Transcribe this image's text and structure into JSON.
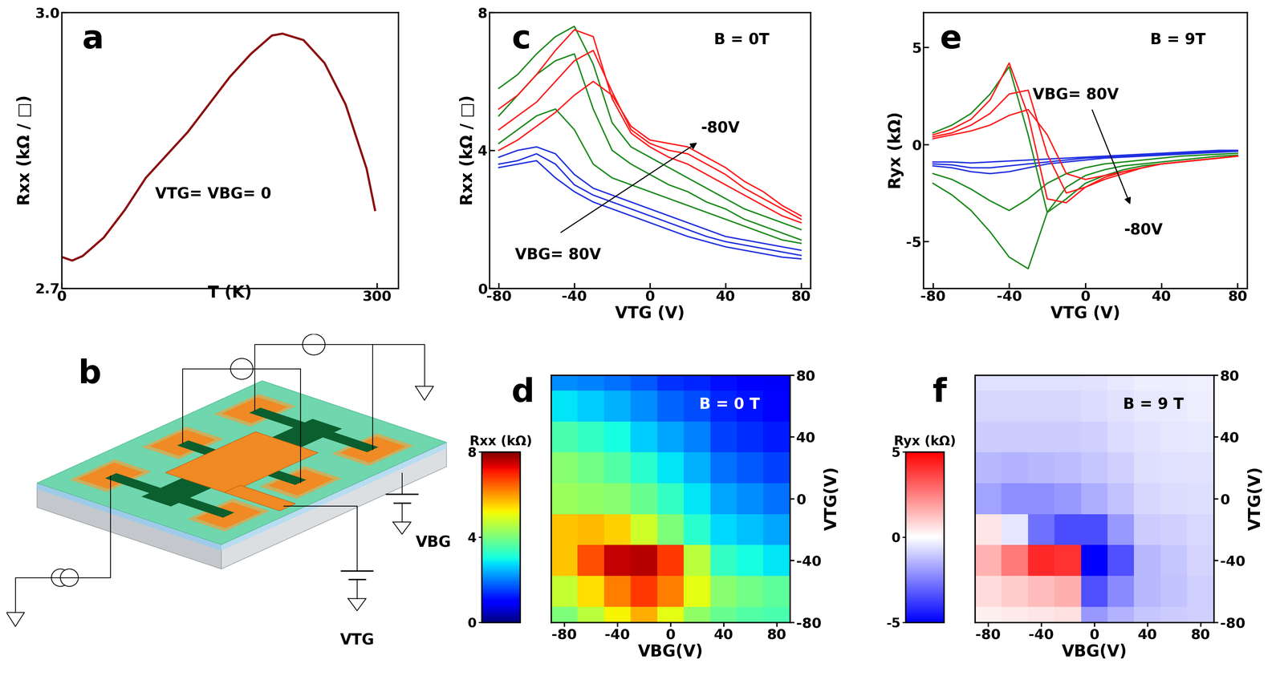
{
  "chart_data": [
    {
      "type": "line",
      "title": "a",
      "x": [
        0,
        10,
        20,
        40,
        60,
        80,
        100,
        120,
        140,
        160,
        180,
        200,
        210,
        230,
        250,
        270,
        290,
        298
      ],
      "values": [
        2.734,
        2.73,
        2.735,
        2.755,
        2.785,
        2.82,
        2.845,
        2.87,
        2.9,
        2.93,
        2.955,
        2.975,
        2.977,
        2.97,
        2.945,
        2.9,
        2.83,
        2.785
      ],
      "color": "#8b1010",
      "xlabel": "T (K)",
      "ylabel": "Rxx (kΩ / □)",
      "xlim": [
        0,
        320
      ],
      "ylim": [
        2.7,
        3.0
      ],
      "xticks": [
        0,
        300
      ],
      "yticks": [
        2.7,
        3.0
      ],
      "annotations": [
        "VTG= VBG= 0"
      ]
    },
    {
      "type": "line",
      "title": "c",
      "x": [
        -80,
        -70,
        -60,
        -50,
        -40,
        -30,
        -20,
        -10,
        0,
        10,
        20,
        30,
        40,
        50,
        60,
        70,
        80
      ],
      "series": [
        {
          "color": "#2030e0",
          "values": [
            3.5,
            3.6,
            3.7,
            3.2,
            2.8,
            2.5,
            2.3,
            2.1,
            1.9,
            1.7,
            1.5,
            1.35,
            1.2,
            1.1,
            1.0,
            0.9,
            0.85
          ]
        },
        {
          "color": "#2030e0",
          "values": [
            3.6,
            3.7,
            3.9,
            3.6,
            3.0,
            2.7,
            2.5,
            2.3,
            2.1,
            1.9,
            1.7,
            1.5,
            1.35,
            1.25,
            1.15,
            1.05,
            0.95
          ]
        },
        {
          "color": "#2030e0",
          "values": [
            3.8,
            4.0,
            4.1,
            3.9,
            3.3,
            2.9,
            2.7,
            2.5,
            2.3,
            2.1,
            1.9,
            1.7,
            1.5,
            1.4,
            1.3,
            1.2,
            1.1
          ]
        },
        {
          "color": "#1a8a1a",
          "values": [
            4.2,
            4.6,
            5.0,
            5.2,
            4.6,
            3.6,
            3.2,
            3.0,
            2.8,
            2.6,
            2.4,
            2.2,
            2.0,
            1.8,
            1.6,
            1.4,
            1.3
          ]
        },
        {
          "color": "#1a8a1a",
          "values": [
            5.0,
            5.6,
            6.2,
            6.6,
            6.8,
            5.2,
            4.0,
            3.6,
            3.3,
            3.0,
            2.8,
            2.5,
            2.3,
            2.0,
            1.8,
            1.6,
            1.4
          ]
        },
        {
          "color": "#1a8a1a",
          "values": [
            5.8,
            6.2,
            6.8,
            7.3,
            7.6,
            6.5,
            4.8,
            4.1,
            3.8,
            3.5,
            3.2,
            2.9,
            2.6,
            2.3,
            2.1,
            1.9,
            1.7
          ]
        },
        {
          "color": "#ff1a1a",
          "values": [
            5.2,
            5.6,
            6.2,
            6.9,
            7.5,
            7.3,
            5.5,
            4.5,
            4.1,
            3.8,
            3.6,
            3.3,
            3.0,
            2.7,
            2.4,
            2.1,
            1.9
          ]
        },
        {
          "color": "#ff1a1a",
          "values": [
            4.6,
            5.0,
            5.4,
            6.0,
            6.6,
            6.9,
            5.7,
            4.6,
            4.2,
            4.0,
            3.9,
            3.6,
            3.3,
            2.9,
            2.6,
            2.3,
            2.0
          ]
        },
        {
          "color": "#ff1a1a",
          "values": [
            4.0,
            4.3,
            4.7,
            5.1,
            5.6,
            6.0,
            5.6,
            4.7,
            4.3,
            4.2,
            4.1,
            3.8,
            3.5,
            3.1,
            2.8,
            2.4,
            2.1
          ]
        }
      ],
      "xlabel": "VTG (V)",
      "ylabel": "Rxx (kΩ / □)",
      "xlim": [
        -85,
        85
      ],
      "ylim": [
        0,
        8
      ],
      "xticks": [
        -80,
        -40,
        0,
        40,
        80
      ],
      "yticks": [
        0,
        4,
        8
      ],
      "annotations": [
        "B = 0T",
        "-80V",
        "VBG= 80V"
      ]
    },
    {
      "type": "heatmap",
      "title": "d",
      "x": [
        -80,
        -60,
        -40,
        -20,
        0,
        20,
        40,
        60,
        80
      ],
      "y": [
        -80,
        -60,
        -40,
        -20,
        0,
        20,
        40,
        60,
        80
      ],
      "cells": [
        [
          4.0,
          4.6,
          5.2,
          5.8,
          5.0,
          4.2,
          3.8,
          3.6,
          3.5
        ],
        [
          4.7,
          5.4,
          6.2,
          6.8,
          6.2,
          5.0,
          4.1,
          3.9,
          3.7
        ],
        [
          5.6,
          6.6,
          7.5,
          7.6,
          6.8,
          4.6,
          3.3,
          3.0,
          2.8
        ],
        [
          5.6,
          5.7,
          5.5,
          4.8,
          4.0,
          3.2,
          2.7,
          2.5,
          2.3
        ],
        [
          4.3,
          4.2,
          4.1,
          3.8,
          3.3,
          2.8,
          2.3,
          2.1,
          1.9
        ],
        [
          4.1,
          3.9,
          3.6,
          3.2,
          2.8,
          2.4,
          1.9,
          1.7,
          1.5
        ],
        [
          3.5,
          3.3,
          3.0,
          2.6,
          2.3,
          2.0,
          1.5,
          1.35,
          1.2
        ],
        [
          2.8,
          2.6,
          2.4,
          2.1,
          1.8,
          1.6,
          1.3,
          1.15,
          1.0
        ],
        [
          2.1,
          2.0,
          1.9,
          1.7,
          1.4,
          1.3,
          1.1,
          0.95,
          0.85
        ]
      ],
      "xlabel": "VBG(V)",
      "ylabel": "VTG(V)",
      "xlim": [
        -90,
        90
      ],
      "ylim": [
        -80,
        80
      ],
      "xticks": [
        -80,
        -40,
        0,
        40,
        80
      ],
      "yticks": [
        -80,
        -40,
        0,
        40,
        80
      ],
      "colorbar": {
        "label": "Rxx (kΩ)",
        "lim": [
          0,
          8
        ],
        "ticks": [
          0,
          4,
          8
        ]
      },
      "annotations": [
        "B = 0 T"
      ]
    },
    {
      "type": "line",
      "title": "e",
      "x": [
        -80,
        -70,
        -60,
        -50,
        -40,
        -30,
        -20,
        -10,
        0,
        10,
        20,
        30,
        40,
        50,
        60,
        70,
        80
      ],
      "series": [
        {
          "color": "#2030e0",
          "values": [
            -0.9,
            -0.9,
            -0.95,
            -0.9,
            -0.85,
            -0.8,
            -0.75,
            -0.7,
            -0.65,
            -0.6,
            -0.55,
            -0.5,
            -0.45,
            -0.4,
            -0.35,
            -0.3,
            -0.3
          ]
        },
        {
          "color": "#2030e0",
          "values": [
            -1.0,
            -1.05,
            -1.2,
            -1.2,
            -1.1,
            -1.0,
            -0.9,
            -0.8,
            -0.7,
            -0.65,
            -0.6,
            -0.55,
            -0.5,
            -0.45,
            -0.4,
            -0.35,
            -0.32
          ]
        },
        {
          "color": "#2030e0",
          "values": [
            -1.1,
            -1.2,
            -1.4,
            -1.5,
            -1.4,
            -1.2,
            -1.0,
            -0.9,
            -0.8,
            -0.7,
            -0.65,
            -0.6,
            -0.55,
            -0.5,
            -0.45,
            -0.4,
            -0.35
          ]
        },
        {
          "color": "#1a8a1a",
          "values": [
            -1.5,
            -1.8,
            -2.3,
            -2.9,
            -3.4,
            -2.8,
            -2.0,
            -1.5,
            -1.2,
            -1.0,
            -0.9,
            -0.8,
            -0.7,
            -0.6,
            -0.55,
            -0.5,
            -0.45
          ]
        },
        {
          "color": "#1a8a1a",
          "values": [
            -2.0,
            -2.6,
            -3.4,
            -4.5,
            -5.8,
            -6.4,
            -3.5,
            -2.2,
            -1.6,
            -1.3,
            -1.1,
            -1.0,
            -0.9,
            -0.8,
            -0.7,
            -0.6,
            -0.55
          ]
        },
        {
          "color": "#1a8a1a",
          "values": [
            0.6,
            1.0,
            1.6,
            2.6,
            4.0,
            0.5,
            -3.5,
            -2.8,
            -2.0,
            -1.6,
            -1.3,
            -1.1,
            -1.0,
            -0.9,
            -0.8,
            -0.7,
            -0.6
          ]
        },
        {
          "color": "#ff1a1a",
          "values": [
            0.5,
            0.8,
            1.3,
            2.3,
            4.2,
            1.5,
            -2.8,
            -3.0,
            -2.2,
            -1.7,
            -1.4,
            -1.2,
            -1.0,
            -0.9,
            -0.8,
            -0.7,
            -0.6
          ]
        },
        {
          "color": "#ff1a1a",
          "values": [
            0.4,
            0.6,
            1.0,
            1.6,
            2.6,
            2.8,
            -0.5,
            -2.5,
            -2.2,
            -1.8,
            -1.5,
            -1.2,
            -1.0,
            -0.9,
            -0.8,
            -0.7,
            -0.6
          ]
        },
        {
          "color": "#ff1a1a",
          "values": [
            0.3,
            0.5,
            0.7,
            1.0,
            1.5,
            1.8,
            0.5,
            -1.5,
            -1.8,
            -1.6,
            -1.4,
            -1.2,
            -1.0,
            -0.9,
            -0.8,
            -0.7,
            -0.6
          ]
        }
      ],
      "xlabel": "VTG (V)",
      "ylabel": "Ryx (kΩ)",
      "xlim": [
        -85,
        85
      ],
      "ylim": [
        -7.4,
        6.8
      ],
      "xticks": [
        -80,
        -40,
        0,
        40,
        80
      ],
      "yticks": [
        -5,
        0,
        5
      ],
      "annotations": [
        "B = 9T",
        "VBG= 80V",
        "-80V"
      ]
    },
    {
      "type": "heatmap",
      "title": "f",
      "x": [
        -80,
        -60,
        -40,
        -20,
        0,
        20,
        40,
        60,
        80
      ],
      "y": [
        -80,
        -60,
        -40,
        -20,
        0,
        20,
        40,
        60,
        80
      ],
      "cells": [
        [
          0.3,
          0.4,
          0.5,
          0.6,
          -2.0,
          -1.5,
          -1.1,
          -1.0,
          -0.9
        ],
        [
          0.7,
          1.0,
          1.3,
          1.6,
          -3.4,
          -2.3,
          -1.4,
          -1.2,
          -0.95
        ],
        [
          1.5,
          2.6,
          4.2,
          4.0,
          -5.8,
          -3.4,
          -1.4,
          -1.1,
          -0.85
        ],
        [
          0.5,
          -0.5,
          -2.8,
          -3.5,
          -3.5,
          -2.0,
          -1.0,
          -0.9,
          -0.75
        ],
        [
          -1.8,
          -2.2,
          -2.2,
          -2.0,
          -1.6,
          -1.2,
          -0.8,
          -0.7,
          -0.65
        ],
        [
          -1.4,
          -1.5,
          -1.4,
          -1.3,
          -1.1,
          -0.9,
          -0.65,
          -0.6,
          -0.55
        ],
        [
          -1.0,
          -1.0,
          -1.0,
          -1.0,
          -0.9,
          -0.7,
          -0.55,
          -0.5,
          -0.45
        ],
        [
          -0.8,
          -0.8,
          -0.8,
          -0.8,
          -0.7,
          -0.55,
          -0.45,
          -0.4,
          -0.35
        ],
        [
          -0.6,
          -0.6,
          -0.6,
          -0.6,
          -0.55,
          -0.45,
          -0.35,
          -0.32,
          -0.3
        ]
      ],
      "xlabel": "VBG(V)",
      "ylabel": "VTG(V)",
      "xlim": [
        -90,
        90
      ],
      "ylim": [
        -80,
        80
      ],
      "xticks": [
        -80,
        -40,
        0,
        40,
        80
      ],
      "yticks": [
        -80,
        -40,
        0,
        40,
        80
      ],
      "colorbar": {
        "label": "Ryx (kΩ)",
        "lim": [
          -5,
          5
        ],
        "ticks": [
          -5,
          0,
          5
        ]
      },
      "annotations": [
        "B = 9 T"
      ]
    }
  ],
  "diagram": {
    "title": "b",
    "labels": [
      "VTG",
      "VBG"
    ]
  }
}
